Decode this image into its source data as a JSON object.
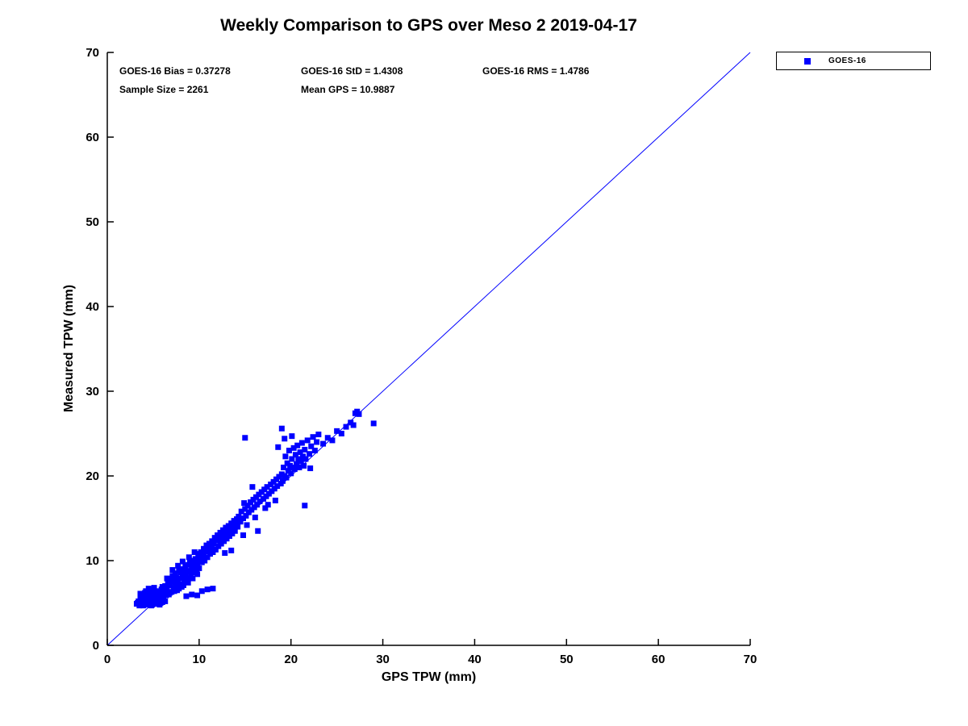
{
  "title": "Weekly Comparison to GPS over Meso 2 2019-04-17",
  "annotations": {
    "bias": "GOES-16 Bias = 0.37278",
    "std": "GOES-16 StD = 1.4308",
    "rms": "GOES-16 RMS = 1.4786",
    "sample_size": "Sample Size = 2261",
    "mean_gps": "Mean GPS = 10.9887"
  },
  "legend": {
    "label": "GOES-16",
    "marker_color": "#0000ff",
    "position": "top-right-outside"
  },
  "chart_data": {
    "type": "scatter",
    "title": "Weekly Comparison to GPS over Meso 2 2019-04-17",
    "xlabel": "GPS TPW (mm)",
    "ylabel": "Measured TPW (mm)",
    "xlim": [
      0,
      70
    ],
    "ylim": [
      0,
      70
    ],
    "xticks": [
      0,
      10,
      20,
      30,
      40,
      50,
      60,
      70
    ],
    "yticks": [
      0,
      10,
      20,
      30,
      40,
      50,
      60,
      70
    ],
    "grid": false,
    "marker": "square",
    "marker_color": "#0000ff",
    "reference_line": {
      "from": [
        0,
        0
      ],
      "to": [
        70,
        70
      ],
      "color": "#0000ff"
    },
    "stats": {
      "bias": 0.37278,
      "std": 1.4308,
      "rms": 1.4786,
      "sample_size": 2261,
      "mean_gps": 10.9887
    },
    "series": [
      {
        "name": "GOES-16",
        "points": [
          [
            3.2,
            4.9
          ],
          [
            3.4,
            5.2
          ],
          [
            3.5,
            4.7
          ],
          [
            3.6,
            5.5
          ],
          [
            3.7,
            4.8
          ],
          [
            3.8,
            5.9
          ],
          [
            3.9,
            5.1
          ],
          [
            4.0,
            4.8
          ],
          [
            4.0,
            5.6
          ],
          [
            4.1,
            5.0
          ],
          [
            4.1,
            6.2
          ],
          [
            4.2,
            4.9
          ],
          [
            4.2,
            5.4
          ],
          [
            4.3,
            5.8
          ],
          [
            4.3,
            5.0
          ],
          [
            4.4,
            5.2
          ],
          [
            4.4,
            6.0
          ],
          [
            4.5,
            4.8
          ],
          [
            4.5,
            5.5
          ],
          [
            4.6,
            5.1
          ],
          [
            4.6,
            6.3
          ],
          [
            4.7,
            4.9
          ],
          [
            4.7,
            5.7
          ],
          [
            4.8,
            5.2
          ],
          [
            4.8,
            6.0
          ],
          [
            4.9,
            5.4
          ],
          [
            4.9,
            4.8
          ],
          [
            5.0,
            5.0
          ],
          [
            5.0,
            5.8
          ],
          [
            5.0,
            6.5
          ],
          [
            5.1,
            5.2
          ],
          [
            5.1,
            4.9
          ],
          [
            5.2,
            5.6
          ],
          [
            5.2,
            6.1
          ],
          [
            5.3,
            5.0
          ],
          [
            5.3,
            5.4
          ],
          [
            5.4,
            5.8
          ],
          [
            5.4,
            4.9
          ],
          [
            5.5,
            5.2
          ],
          [
            5.5,
            6.4
          ],
          [
            5.6,
            5.0
          ],
          [
            5.6,
            5.7
          ],
          [
            5.7,
            6.1
          ],
          [
            5.7,
            5.3
          ],
          [
            5.8,
            5.0
          ],
          [
            5.8,
            5.9
          ],
          [
            5.9,
            5.5
          ],
          [
            5.9,
            6.6
          ],
          [
            6.0,
            5.1
          ],
          [
            6.0,
            6.0
          ],
          [
            3.3,
            5.0
          ],
          [
            3.6,
            6.1
          ],
          [
            3.9,
            4.7
          ],
          [
            4.2,
            6.4
          ],
          [
            4.5,
            6.7
          ],
          [
            4.8,
            4.7
          ],
          [
            5.1,
            6.8
          ],
          [
            5.4,
            6.2
          ],
          [
            5.7,
            4.8
          ],
          [
            6.0,
            6.9
          ],
          [
            6.1,
            5.8
          ],
          [
            6.2,
            6.5
          ],
          [
            6.3,
            7.0
          ],
          [
            6.4,
            5.9
          ],
          [
            6.5,
            6.8
          ],
          [
            6.6,
            7.4
          ],
          [
            6.7,
            6.0
          ],
          [
            6.8,
            7.1
          ],
          [
            6.9,
            7.8
          ],
          [
            7.0,
            6.3
          ],
          [
            7.0,
            7.5
          ],
          [
            7.1,
            8.2
          ],
          [
            7.2,
            6.8
          ],
          [
            7.3,
            7.6
          ],
          [
            7.4,
            8.5
          ],
          [
            7.5,
            7.0
          ],
          [
            7.5,
            8.0
          ],
          [
            7.6,
            6.5
          ],
          [
            7.7,
            7.8
          ],
          [
            7.8,
            8.8
          ],
          [
            7.9,
            7.2
          ],
          [
            8.0,
            7.9
          ],
          [
            8.0,
            8.6
          ],
          [
            8.1,
            6.9
          ],
          [
            8.2,
            8.2
          ],
          [
            8.3,
            9.0
          ],
          [
            8.4,
            7.5
          ],
          [
            8.5,
            8.4
          ],
          [
            8.5,
            9.3
          ],
          [
            8.6,
            7.8
          ],
          [
            8.7,
            8.8
          ],
          [
            8.8,
            9.5
          ],
          [
            8.9,
            8.0
          ],
          [
            9.0,
            8.7
          ],
          [
            9.0,
            9.8
          ],
          [
            9.1,
            8.3
          ],
          [
            9.2,
            9.2
          ],
          [
            9.3,
            10.0
          ],
          [
            9.4,
            8.6
          ],
          [
            9.5,
            9.4
          ],
          [
            9.6,
            10.2
          ],
          [
            9.7,
            8.9
          ],
          [
            9.8,
            9.7
          ],
          [
            9.9,
            10.5
          ],
          [
            10.0,
            9.1
          ],
          [
            6.3,
            5.2
          ],
          [
            6.8,
            6.2
          ],
          [
            7.3,
            6.4
          ],
          [
            7.8,
            6.7
          ],
          [
            8.3,
            7.1
          ],
          [
            8.8,
            7.4
          ],
          [
            9.3,
            7.9
          ],
          [
            9.8,
            8.4
          ],
          [
            6.5,
            7.9
          ],
          [
            7.1,
            8.9
          ],
          [
            7.7,
            9.4
          ],
          [
            8.2,
            9.9
          ],
          [
            8.9,
            10.4
          ],
          [
            9.5,
            11.0
          ],
          [
            10.0,
            10.8
          ],
          [
            8.6,
            5.8
          ],
          [
            9.2,
            6.0
          ],
          [
            9.8,
            5.9
          ],
          [
            10.3,
            6.4
          ],
          [
            10.9,
            6.6
          ],
          [
            11.5,
            6.7
          ],
          [
            10.1,
            10.2
          ],
          [
            10.2,
            11.0
          ],
          [
            10.3,
            9.8
          ],
          [
            10.4,
            10.6
          ],
          [
            10.5,
            11.4
          ],
          [
            10.6,
            10.0
          ],
          [
            10.7,
            11.1
          ],
          [
            10.8,
            11.8
          ],
          [
            10.9,
            10.4
          ],
          [
            11.0,
            11.2
          ],
          [
            11.1,
            12.0
          ],
          [
            11.2,
            10.8
          ],
          [
            11.3,
            11.6
          ],
          [
            11.4,
            12.3
          ],
          [
            11.5,
            11.0
          ],
          [
            11.6,
            12.0
          ],
          [
            11.7,
            12.7
          ],
          [
            11.8,
            11.3
          ],
          [
            11.9,
            12.4
          ],
          [
            12.0,
            13.0
          ],
          [
            12.1,
            11.7
          ],
          [
            12.2,
            12.6
          ],
          [
            12.3,
            13.3
          ],
          [
            12.4,
            12.0
          ],
          [
            12.5,
            12.9
          ],
          [
            12.6,
            13.6
          ],
          [
            12.7,
            12.3
          ],
          [
            12.8,
            13.2
          ],
          [
            12.9,
            13.9
          ],
          [
            13.0,
            12.6
          ],
          [
            13.1,
            13.5
          ],
          [
            13.2,
            14.1
          ],
          [
            13.3,
            12.9
          ],
          [
            13.4,
            13.8
          ],
          [
            13.5,
            14.4
          ],
          [
            13.6,
            13.2
          ],
          [
            13.7,
            14.0
          ],
          [
            13.8,
            14.7
          ],
          [
            13.9,
            13.5
          ],
          [
            14.0,
            14.3
          ],
          [
            14.1,
            14.9
          ],
          [
            14.2,
            14.0
          ],
          [
            14.3,
            15.2
          ],
          [
            14.5,
            14.6
          ],
          [
            14.6,
            15.8
          ],
          [
            14.8,
            15.0
          ],
          [
            15.0,
            16.1
          ],
          [
            15.1,
            15.3
          ],
          [
            15.3,
            16.5
          ],
          [
            15.4,
            15.7
          ],
          [
            15.6,
            16.9
          ],
          [
            15.7,
            16.0
          ],
          [
            15.9,
            17.2
          ],
          [
            16.0,
            16.3
          ],
          [
            16.2,
            17.5
          ],
          [
            16.3,
            16.6
          ],
          [
            16.5,
            17.8
          ],
          [
            16.6,
            17.0
          ],
          [
            16.8,
            18.1
          ],
          [
            17.0,
            17.3
          ],
          [
            17.1,
            18.4
          ],
          [
            17.3,
            17.6
          ],
          [
            17.4,
            18.7
          ],
          [
            17.6,
            17.9
          ],
          [
            17.8,
            19.0
          ],
          [
            17.9,
            18.2
          ],
          [
            18.1,
            19.3
          ],
          [
            18.2,
            18.5
          ],
          [
            18.4,
            19.6
          ],
          [
            18.5,
            18.8
          ],
          [
            18.7,
            19.9
          ],
          [
            18.9,
            19.1
          ],
          [
            15.2,
            14.2
          ],
          [
            16.1,
            15.1
          ],
          [
            17.2,
            16.2
          ],
          [
            18.3,
            17.1
          ],
          [
            16.4,
            13.5
          ],
          [
            17.5,
            16.6
          ],
          [
            15.8,
            18.7
          ],
          [
            14.9,
            16.8
          ],
          [
            19.0,
            20.2
          ],
          [
            19.1,
            19.4
          ],
          [
            19.2,
            21.0
          ],
          [
            19.3,
            20.0
          ],
          [
            19.4,
            22.3
          ],
          [
            19.5,
            19.8
          ],
          [
            19.6,
            21.5
          ],
          [
            19.7,
            20.6
          ],
          [
            19.8,
            23.0
          ],
          [
            19.9,
            21.2
          ],
          [
            20.0,
            20.3
          ],
          [
            20.1,
            22.0
          ],
          [
            20.2,
            21.0
          ],
          [
            20.3,
            23.3
          ],
          [
            20.4,
            20.8
          ],
          [
            20.5,
            22.5
          ],
          [
            20.6,
            21.4
          ],
          [
            20.7,
            23.6
          ],
          [
            20.8,
            22.0
          ],
          [
            20.9,
            21.0
          ],
          [
            21.0,
            22.8
          ],
          [
            21.1,
            21.7
          ],
          [
            21.2,
            23.9
          ],
          [
            21.3,
            22.3
          ],
          [
            21.4,
            21.2
          ],
          [
            21.5,
            23.1
          ],
          [
            21.6,
            22.0
          ],
          [
            21.8,
            24.2
          ],
          [
            22.0,
            22.6
          ],
          [
            22.2,
            23.5
          ],
          [
            22.4,
            24.6
          ],
          [
            22.6,
            23.0
          ],
          [
            22.8,
            24.0
          ],
          [
            23.0,
            24.9
          ],
          [
            19.3,
            24.4
          ],
          [
            20.1,
            24.7
          ],
          [
            21.5,
            16.5
          ],
          [
            22.1,
            20.9
          ],
          [
            18.6,
            23.4
          ],
          [
            19.0,
            25.6
          ],
          [
            23.5,
            23.8
          ],
          [
            24.0,
            24.5
          ],
          [
            24.5,
            24.2
          ],
          [
            25.0,
            25.3
          ],
          [
            25.5,
            25.0
          ],
          [
            26.0,
            25.8
          ],
          [
            26.5,
            26.3
          ],
          [
            27.0,
            27.4
          ],
          [
            27.2,
            27.6
          ],
          [
            27.4,
            27.3
          ],
          [
            26.8,
            26.0
          ],
          [
            29.0,
            26.2
          ],
          [
            15.0,
            24.5
          ],
          [
            14.8,
            13.0
          ],
          [
            13.5,
            11.2
          ],
          [
            12.8,
            10.9
          ]
        ]
      }
    ]
  }
}
